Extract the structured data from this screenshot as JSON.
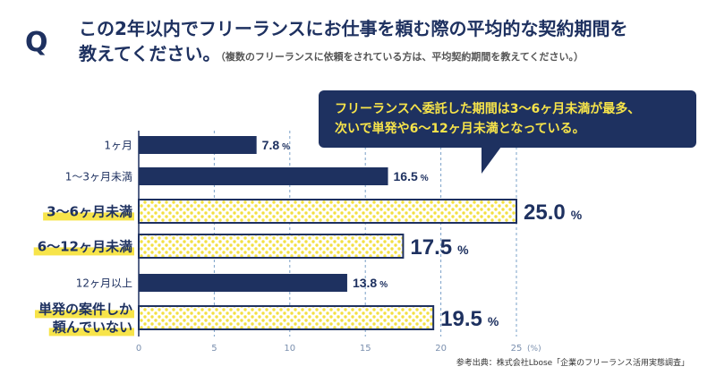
{
  "title": {
    "q_mark": "Q",
    "line1": "この2年以内でフリーランスにお仕事を頼む際の平均的な契約期間を",
    "line2": "教えてください。",
    "note": "（複数のフリーランスに依頼をされている方は、平均契約期間を教えてください。）"
  },
  "callout": {
    "line1": "フリーランスへ委託した期間は3〜6ヶ月未満が最多、",
    "line2": "次いで単発や6〜12ヶ月未満となっている。"
  },
  "source": "参考出典：株式会社Lbose「企業のフリーランス活用実態調査」",
  "colors": {
    "navy": "#1e3160",
    "highlight_yellow": "#f7e44a",
    "dot_yellow": "#f3e043"
  },
  "chart_data": {
    "type": "bar",
    "orientation": "horizontal",
    "categories": [
      [
        "1ヶ月"
      ],
      [
        "1〜3ヶ月未満"
      ],
      [
        "3〜6ヶ月未満"
      ],
      [
        "6〜12ヶ月未満"
      ],
      [
        "12ヶ月以上"
      ],
      [
        "単発の案件しか",
        "頼んでいない"
      ]
    ],
    "values": [
      7.8,
      16.5,
      25.0,
      17.5,
      13.8,
      19.5
    ],
    "value_labels": [
      "7.8",
      "16.5",
      "25.0",
      "17.5",
      "13.8",
      "19.5"
    ],
    "unit": "%",
    "highlighted": [
      false,
      false,
      true,
      true,
      false,
      true
    ],
    "x_ticks": [
      "0",
      "5",
      "10",
      "15",
      "20",
      "25"
    ],
    "x_unit_label": "(%)",
    "xlim": [
      0,
      25
    ],
    "grid": true
  }
}
